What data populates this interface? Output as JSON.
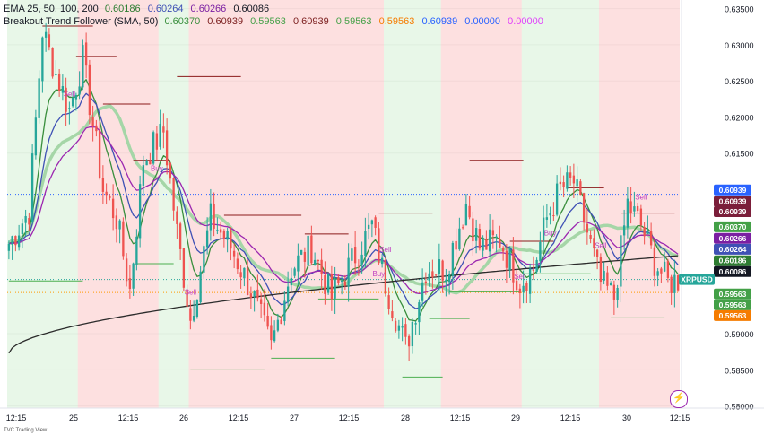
{
  "legend": {
    "ema_label": "EMA 25, 50, 100, 200",
    "ema_values": [
      "0.60186",
      "0.60264",
      "0.60266",
      "0.60086"
    ],
    "btf_label": "Breakout Trend Follower (SMA, 50)",
    "btf_values": [
      "0.60370",
      "0.60939",
      "0.59563",
      "0.60939",
      "0.59563",
      "0.59563",
      "0.60939",
      "0.00000",
      "0.00000"
    ]
  },
  "symbol": "XRPUSD",
  "footer_text": "TVC Trading View",
  "colors": {
    "up": "#26a69a",
    "down": "#ef5350",
    "bg_green": "#e8f7e8",
    "bg_red": "#fde0e0",
    "ema25": "#388e3c",
    "ema50": "#3f51b5",
    "ema100": "#9c27b0",
    "ema200": "#2b2b2b",
    "sma50": "#a5d6a7",
    "level_green": "#4caf50",
    "level_red": "#8b1a1a",
    "signal": "#c040c0",
    "legend_values": [
      "#2e7d32",
      "#3f51b5",
      "#7b1fa2",
      "#131722",
      "#388e3c",
      "#7b1e1e",
      "#43a047",
      "#7b1e1e",
      "#43a047",
      "#f57c00",
      "#2962ff",
      "#2962ff",
      "#e040fb"
    ]
  },
  "chart_data": {
    "type": "candlestick",
    "title": "",
    "xlabel": "",
    "ylabel": "",
    "ylim": [
      0.5797,
      0.6362
    ],
    "y_ticks": [
      "0.63500",
      "0.63000",
      "0.62500",
      "0.62000",
      "0.61500",
      "0.59000",
      "0.58500",
      "0.58000"
    ],
    "x_ticks": [
      "12:15",
      "25",
      "12:15",
      "26",
      "12:15",
      "27",
      "12:15",
      "28",
      "12:15",
      "29",
      "12:15",
      "30",
      "12:15"
    ],
    "bars_count": 200,
    "anchors": [
      [
        0,
        0.6025
      ],
      [
        6,
        0.607
      ],
      [
        10,
        0.632
      ],
      [
        14,
        0.626
      ],
      [
        18,
        0.621
      ],
      [
        22,
        0.628
      ],
      [
        28,
        0.61
      ],
      [
        32,
        0.606
      ],
      [
        36,
        0.596
      ],
      [
        40,
        0.614
      ],
      [
        46,
        0.618
      ],
      [
        50,
        0.604
      ],
      [
        54,
        0.592
      ],
      [
        60,
        0.606
      ],
      [
        66,
        0.602
      ],
      [
        72,
        0.596
      ],
      [
        78,
        0.588
      ],
      [
        84,
        0.599
      ],
      [
        90,
        0.602
      ],
      [
        96,
        0.595
      ],
      [
        102,
        0.6
      ],
      [
        108,
        0.605
      ],
      [
        112,
        0.597
      ],
      [
        118,
        0.588
      ],
      [
        124,
        0.599
      ],
      [
        130,
        0.599
      ],
      [
        136,
        0.608
      ],
      [
        140,
        0.602
      ],
      [
        146,
        0.603
      ],
      [
        152,
        0.597
      ],
      [
        156,
        0.599
      ],
      [
        160,
        0.606
      ],
      [
        164,
        0.61
      ],
      [
        168,
        0.611
      ],
      [
        172,
        0.604
      ],
      [
        176,
        0.597
      ],
      [
        180,
        0.595
      ],
      [
        184,
        0.608
      ],
      [
        188,
        0.605
      ],
      [
        192,
        0.6
      ],
      [
        196,
        0.597
      ],
      [
        199,
        0.5975
      ]
    ],
    "regions": [
      {
        "from": 0,
        "to": 21,
        "trend": "up"
      },
      {
        "from": 21,
        "to": 45,
        "trend": "down"
      },
      {
        "from": 45,
        "to": 54,
        "trend": "up"
      },
      {
        "from": 54,
        "to": 112,
        "trend": "down"
      },
      {
        "from": 112,
        "to": 129,
        "trend": "up"
      },
      {
        "from": 129,
        "to": 153,
        "trend": "down"
      },
      {
        "from": 153,
        "to": 161,
        "trend": "up"
      },
      {
        "from": 161,
        "to": 176,
        "trend": "up"
      },
      {
        "from": 176,
        "to": 199,
        "trend": "down"
      }
    ],
    "resistance_levels": [
      {
        "from": 10,
        "to": 25,
        "value": 0.6326
      },
      {
        "from": 20,
        "to": 32,
        "value": 0.6284
      },
      {
        "from": 28,
        "to": 42,
        "value": 0.6218
      },
      {
        "from": 37,
        "to": 48,
        "value": 0.614
      },
      {
        "from": 50,
        "to": 69,
        "value": 0.6256
      },
      {
        "from": 64,
        "to": 87,
        "value": 0.6064
      },
      {
        "from": 88,
        "to": 101,
        "value": 0.6038
      },
      {
        "from": 110,
        "to": 126,
        "value": 0.6067
      },
      {
        "from": 137,
        "to": 153,
        "value": 0.614
      },
      {
        "from": 149,
        "to": 162,
        "value": 0.6028
      },
      {
        "from": 166,
        "to": 177,
        "value": 0.6102
      },
      {
        "from": 182,
        "to": 198,
        "value": 0.6067
      }
    ],
    "support_levels": [
      {
        "from": 0,
        "to": 22,
        "value": 0.5973
      },
      {
        "from": 38,
        "to": 49,
        "value": 0.5997
      },
      {
        "from": 54,
        "to": 76,
        "value": 0.585
      },
      {
        "from": 78,
        "to": 97,
        "value": 0.5866
      },
      {
        "from": 92,
        "to": 110,
        "value": 0.5948
      },
      {
        "from": 117,
        "to": 129,
        "value": 0.584
      },
      {
        "from": 125,
        "to": 137,
        "value": 0.5921
      },
      {
        "from": 131,
        "to": 152,
        "value": 0.5958
      },
      {
        "from": 153,
        "to": 173,
        "value": 0.5983
      },
      {
        "from": 179,
        "to": 195,
        "value": 0.5922
      }
    ],
    "signals": [
      {
        "bar": 18,
        "type": "sell",
        "label": "Sell"
      },
      {
        "bar": 44,
        "type": "buy",
        "label": "Buy"
      },
      {
        "bar": 54,
        "type": "sell",
        "label": "Sell"
      },
      {
        "bar": 110,
        "type": "buy",
        "label": "Buy"
      },
      {
        "bar": 112,
        "type": "sell",
        "label": "Sell"
      },
      {
        "bar": 152,
        "type": "sell",
        "label": "Sell"
      },
      {
        "bar": 161,
        "type": "buy",
        "label": "Buy"
      },
      {
        "bar": 176,
        "type": "sell",
        "label": "Sell"
      },
      {
        "bar": 188,
        "type": "sell",
        "label": "Sell"
      }
    ],
    "dotted_lines": [
      {
        "value": 0.6093,
        "color": "#2962ff"
      },
      {
        "value": 0.5975,
        "color": "#26a69a"
      },
      {
        "value": 0.5957,
        "color": "#ff9800"
      }
    ],
    "price_tags": [
      {
        "label": "0.60939",
        "value": 0.6099,
        "bg": "#2962ff",
        "fg": "#ffffff"
      },
      {
        "label": "0.60939",
        "value": 0.6083,
        "bg": "#7b1e3a",
        "fg": "#ffffff"
      },
      {
        "label": "0.60939",
        "value": 0.6069,
        "bg": "#7b1e3a",
        "fg": "#ffffff"
      },
      {
        "label": "0.60370",
        "value": 0.6048,
        "bg": "#43a047",
        "fg": "#ffffff"
      },
      {
        "label": "0.60266",
        "value": 0.6032,
        "bg": "#7b1fa2",
        "fg": "#ffffff"
      },
      {
        "label": "0.60264",
        "value": 0.6017,
        "bg": "#3f51b5",
        "fg": "#ffffff"
      },
      {
        "label": "0.60186",
        "value": 0.6001,
        "bg": "#2e7d32",
        "fg": "#ffffff"
      },
      {
        "label": "0.60086",
        "value": 0.5986,
        "bg": "#131722",
        "fg": "#ffffff"
      },
      {
        "label": "XRPUSD",
        "value": 0.5975,
        "bg": "#26a69a",
        "fg": "#ffffff",
        "wide": true
      },
      {
        "label": "0.59563",
        "value": 0.5955,
        "bg": "#43a047",
        "fg": "#ffffff"
      },
      {
        "label": "0.59563",
        "value": 0.594,
        "bg": "#43a047",
        "fg": "#ffffff"
      },
      {
        "label": "0.59563",
        "value": 0.5925,
        "bg": "#f57c00",
        "fg": "#ffffff"
      }
    ]
  }
}
